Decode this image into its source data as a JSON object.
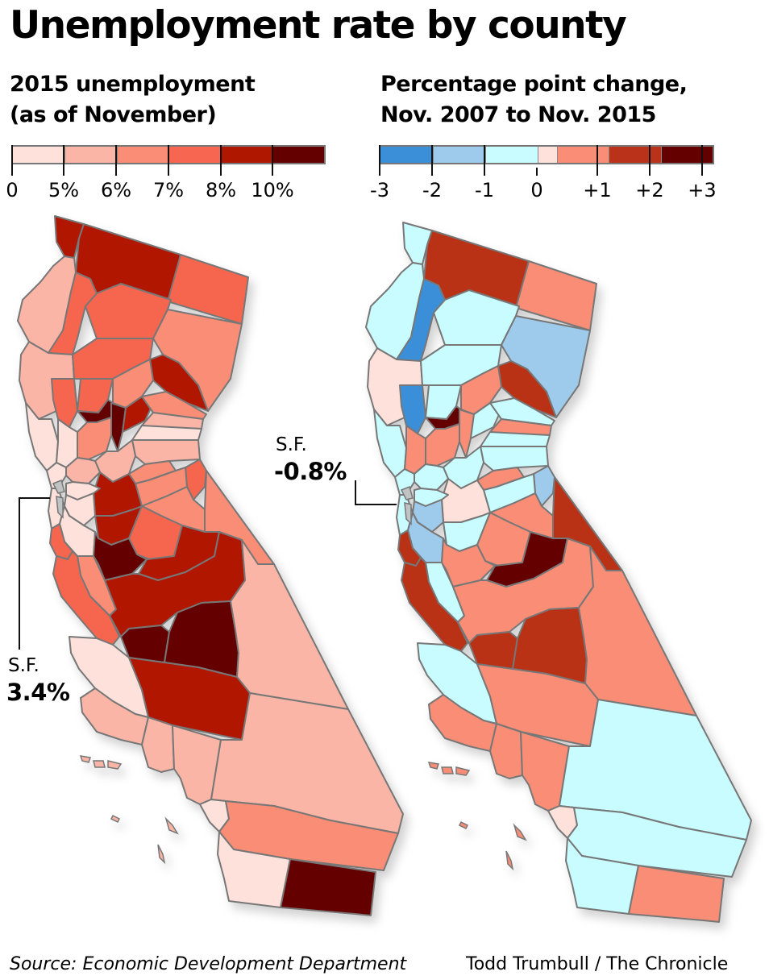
{
  "title": "Unemployment rate by county",
  "left_panel": {
    "subtitle_lines": [
      "2015 unemployment",
      "(as of November)"
    ],
    "legend": {
      "colors": [
        "#fde1da",
        "#fbb5a6",
        "#f98d76",
        "#f66650",
        "#b01701",
        "#650000"
      ],
      "tick_labels": [
        "0",
        "5%",
        "6%",
        "7%",
        "8%",
        "10%"
      ]
    },
    "callout": {
      "label": "S.F.",
      "value": "3.4%"
    }
  },
  "right_panel": {
    "subtitle_lines": [
      "Percentage point change,",
      "Nov. 2007 to Nov. 2015"
    ],
    "legend": {
      "colors": [
        "#3b8fd8",
        "#9ecaec",
        "#c8fcff",
        "#fde1da",
        "#f98d76",
        "#b93219",
        "#650000"
      ],
      "tick_labels": [
        "-3",
        "-2",
        "-1",
        "0",
        "+1",
        "+2",
        "+3"
      ]
    },
    "callout": {
      "label": "S.F.",
      "value": "-0.8%"
    }
  },
  "footer": {
    "source": "Source: Economic Development Department",
    "credit": "Todd Trumbull / The Chronicle"
  },
  "chart_data": [
    {
      "type": "choropleth",
      "title": "2015 unemployment (as of November)",
      "legend_bins": [
        "0–5%",
        "5–6%",
        "6–7%",
        "7–8%",
        "8–10%",
        ">10%"
      ],
      "legend_colors": [
        "#fde1da",
        "#fbb5a6",
        "#f98d76",
        "#f66650",
        "#b01701",
        "#650000"
      ],
      "annotations": [
        {
          "label": "S.F.",
          "value": "3.4%"
        }
      ],
      "regions": [
        {
          "id": "del-norte",
          "bin": 4
        },
        {
          "id": "siskiyou",
          "bin": 4
        },
        {
          "id": "modoc",
          "bin": 3
        },
        {
          "id": "humboldt",
          "bin": 1
        },
        {
          "id": "trinity",
          "bin": 3
        },
        {
          "id": "shasta",
          "bin": 3
        },
        {
          "id": "lassen",
          "bin": 2
        },
        {
          "id": "mendocino",
          "bin": 1
        },
        {
          "id": "tehama",
          "bin": 3
        },
        {
          "id": "plumas",
          "bin": 4
        },
        {
          "id": "glenn",
          "bin": 3
        },
        {
          "id": "butte",
          "bin": 2
        },
        {
          "id": "lake",
          "bin": 3
        },
        {
          "id": "colusa",
          "bin": 5
        },
        {
          "id": "sutter",
          "bin": 5
        },
        {
          "id": "yuba",
          "bin": 4
        },
        {
          "id": "sierra",
          "bin": 2
        },
        {
          "id": "nevada",
          "bin": 1
        },
        {
          "id": "placer",
          "bin": 0
        },
        {
          "id": "el-dorado",
          "bin": 1
        },
        {
          "id": "sonoma",
          "bin": 0
        },
        {
          "id": "napa",
          "bin": 0
        },
        {
          "id": "yolo",
          "bin": 2
        },
        {
          "id": "sacramento",
          "bin": 1
        },
        {
          "id": "solano",
          "bin": 1
        },
        {
          "id": "marin",
          "bin": 0
        },
        {
          "id": "amador",
          "bin": 2
        },
        {
          "id": "alpine",
          "bin": 3
        },
        {
          "id": "calaveras",
          "bin": 2
        },
        {
          "id": "tuolumne",
          "bin": 2
        },
        {
          "id": "san-joaquin",
          "bin": 4
        },
        {
          "id": "contra-costa",
          "bin": 0
        },
        {
          "id": "alameda",
          "bin": 0
        },
        {
          "id": "san-mateo",
          "bin": 0
        },
        {
          "id": "santa-clara",
          "bin": 0
        },
        {
          "id": "stanislaus",
          "bin": 4
        },
        {
          "id": "mariposa",
          "bin": 3
        },
        {
          "id": "mono",
          "bin": 2
        },
        {
          "id": "merced",
          "bin": 5
        },
        {
          "id": "madera",
          "bin": 4
        },
        {
          "id": "santa-cruz",
          "bin": 3
        },
        {
          "id": "san-benito",
          "bin": 2
        },
        {
          "id": "monterey",
          "bin": 3
        },
        {
          "id": "fresno",
          "bin": 4
        },
        {
          "id": "kings",
          "bin": 5
        },
        {
          "id": "tulare",
          "bin": 5
        },
        {
          "id": "inyo",
          "bin": 1
        },
        {
          "id": "san-luis-obispo",
          "bin": 0
        },
        {
          "id": "kern",
          "bin": 4
        },
        {
          "id": "santa-barbara",
          "bin": 1
        },
        {
          "id": "ventura",
          "bin": 1
        },
        {
          "id": "los-angeles",
          "bin": 1
        },
        {
          "id": "san-bernardino",
          "bin": 1
        },
        {
          "id": "orange",
          "bin": 0
        },
        {
          "id": "riverside",
          "bin": 2
        },
        {
          "id": "san-diego",
          "bin": 0
        },
        {
          "id": "imperial",
          "bin": 5
        }
      ]
    },
    {
      "type": "choropleth",
      "title": "Percentage point change, Nov. 2007 to Nov. 2015",
      "legend_bins": [
        "-3 to -2",
        "-2 to -1",
        "-1 to 0",
        "~0",
        "0 to +1",
        "+1 to +2",
        "+2 to +3"
      ],
      "legend_colors": [
        "#3b8fd8",
        "#9ecaec",
        "#c8fcff",
        "#fde1da",
        "#f98d76",
        "#b93219",
        "#650000"
      ],
      "annotations": [
        {
          "label": "S.F.",
          "value": "-0.8%"
        }
      ],
      "regions": [
        {
          "id": "del-norte",
          "bin": 2
        },
        {
          "id": "siskiyou",
          "bin": 5
        },
        {
          "id": "modoc",
          "bin": 4
        },
        {
          "id": "humboldt",
          "bin": 2
        },
        {
          "id": "trinity",
          "bin": 0
        },
        {
          "id": "shasta",
          "bin": 2
        },
        {
          "id": "lassen",
          "bin": 1
        },
        {
          "id": "mendocino",
          "bin": 3
        },
        {
          "id": "tehama",
          "bin": 2
        },
        {
          "id": "plumas",
          "bin": 5
        },
        {
          "id": "glenn",
          "bin": 2
        },
        {
          "id": "butte",
          "bin": 4
        },
        {
          "id": "lake",
          "bin": 0
        },
        {
          "id": "colusa",
          "bin": 6
        },
        {
          "id": "sutter",
          "bin": 4
        },
        {
          "id": "yuba",
          "bin": 2
        },
        {
          "id": "sierra",
          "bin": 2
        },
        {
          "id": "nevada",
          "bin": 4
        },
        {
          "id": "placer",
          "bin": 2
        },
        {
          "id": "el-dorado",
          "bin": 2
        },
        {
          "id": "sonoma",
          "bin": 2
        },
        {
          "id": "napa",
          "bin": 4
        },
        {
          "id": "yolo",
          "bin": 4
        },
        {
          "id": "sacramento",
          "bin": 2
        },
        {
          "id": "solano",
          "bin": 2
        },
        {
          "id": "marin",
          "bin": 2
        },
        {
          "id": "amador",
          "bin": 4
        },
        {
          "id": "alpine",
          "bin": 1
        },
        {
          "id": "calaveras",
          "bin": 2
        },
        {
          "id": "tuolumne",
          "bin": 4
        },
        {
          "id": "san-joaquin",
          "bin": 3
        },
        {
          "id": "contra-costa",
          "bin": 2
        },
        {
          "id": "alameda",
          "bin": 1
        },
        {
          "id": "san-mateo",
          "bin": 2
        },
        {
          "id": "santa-clara",
          "bin": 1
        },
        {
          "id": "stanislaus",
          "bin": 2
        },
        {
          "id": "mariposa",
          "bin": 4
        },
        {
          "id": "mono",
          "bin": 5
        },
        {
          "id": "merced",
          "bin": 4
        },
        {
          "id": "madera",
          "bin": 6
        },
        {
          "id": "santa-cruz",
          "bin": 5
        },
        {
          "id": "san-benito",
          "bin": 2
        },
        {
          "id": "monterey",
          "bin": 5
        },
        {
          "id": "fresno",
          "bin": 4
        },
        {
          "id": "kings",
          "bin": 5
        },
        {
          "id": "tulare",
          "bin": 5
        },
        {
          "id": "inyo",
          "bin": 4
        },
        {
          "id": "san-luis-obispo",
          "bin": 2
        },
        {
          "id": "kern",
          "bin": 4
        },
        {
          "id": "santa-barbara",
          "bin": 4
        },
        {
          "id": "ventura",
          "bin": 4
        },
        {
          "id": "los-angeles",
          "bin": 4
        },
        {
          "id": "san-bernardino",
          "bin": 2
        },
        {
          "id": "orange",
          "bin": 3
        },
        {
          "id": "riverside",
          "bin": 2
        },
        {
          "id": "san-diego",
          "bin": 2
        },
        {
          "id": "imperial",
          "bin": 4
        }
      ]
    }
  ]
}
